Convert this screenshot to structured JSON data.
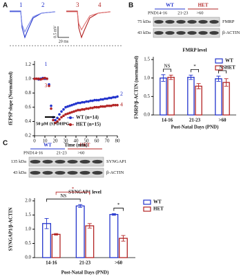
{
  "panel_labels": [
    "A",
    "B",
    "C"
  ],
  "traces": {
    "labels": [
      "1",
      "2",
      "3",
      "4"
    ],
    "scale_y": "0.5 mV",
    "scale_x": "20 ms"
  },
  "blots": [
    {
      "header": [
        "WT",
        "HET"
      ],
      "lanes": [
        "PND14-16",
        "21-23",
        ">60"
      ],
      "rows": [
        {
          "kda": "75 kDa",
          "label": "FMRP"
        },
        {
          "kda": "43 kDa",
          "label": "β-ACTIN"
        }
      ]
    },
    {
      "header": [
        "WT",
        "HET"
      ],
      "lanes": [
        "PND14-16",
        "21-23",
        ">60"
      ],
      "rows": [
        {
          "kda": "135 kDa",
          "label": "SYNGAP1"
        },
        {
          "kda": "43 kDa",
          "label": "β-ACTIN"
        }
      ]
    }
  ],
  "chart_data": [
    {
      "type": "line",
      "ylabel": "fEPSP slope (Normalized)",
      "xlabel": "Time (min)",
      "x": [
        0,
        2,
        4,
        6,
        8,
        10,
        12,
        14,
        16,
        18,
        20,
        22,
        24,
        26,
        28,
        30,
        32,
        34,
        36,
        38,
        40,
        42,
        44,
        46,
        48,
        50,
        52,
        54,
        56,
        58,
        60,
        62,
        64,
        66,
        68,
        70,
        72,
        74,
        76,
        78,
        80
      ],
      "series": [
        {
          "name": "WT (n=14)",
          "color": "#2233cc",
          "values": [
            1.0,
            1.0,
            0.99,
            1.0,
            1.01,
            1.0,
            1.0,
            0.92,
            0.62,
            0.46,
            0.42,
            0.45,
            0.5,
            0.54,
            0.57,
            0.6,
            0.61,
            0.62,
            0.63,
            0.64,
            0.65,
            0.66,
            0.66,
            0.67,
            0.67,
            0.68,
            0.68,
            0.69,
            0.69,
            0.7,
            0.7,
            0.7,
            0.71,
            0.71,
            0.72,
            0.72,
            0.73,
            0.73,
            0.74,
            0.74,
            0.75
          ]
        },
        {
          "name": "HET (n=15)",
          "color": "#b22222",
          "values": [
            1.0,
            1.0,
            1.0,
            0.99,
            1.0,
            1.01,
            1.0,
            0.9,
            0.58,
            0.42,
            0.38,
            0.4,
            0.43,
            0.46,
            0.48,
            0.5,
            0.51,
            0.52,
            0.53,
            0.54,
            0.55,
            0.56,
            0.56,
            0.57,
            0.57,
            0.58,
            0.58,
            0.59,
            0.59,
            0.6,
            0.6,
            0.6,
            0.61,
            0.61,
            0.61,
            0.62,
            0.62,
            0.62,
            0.63,
            0.63,
            0.63
          ]
        }
      ],
      "xlim": [
        0,
        80
      ],
      "xticks": [
        0,
        10,
        20,
        30,
        40,
        50,
        60,
        70,
        80
      ],
      "ylim": [
        0.2,
        1.25
      ],
      "yticks": [
        0.2,
        0.4,
        0.6,
        0.8,
        {
          "value": 1.0,
          "label": "1.0"
        },
        1.2
      ],
      "annotations": [
        "50 μM (S)-DHPG",
        "1",
        "2",
        "3",
        "4"
      ]
    },
    {
      "type": "bar",
      "title": "FMRP level",
      "ylabel": "FMRP/β-ACTIN (normalized)",
      "xlabel": "Post-Natal Days (PND)",
      "categories": [
        "14-16",
        "21-23",
        ">60"
      ],
      "series": [
        {
          "name": "WT",
          "color": "#2233cc",
          "values": [
            1.0,
            1.02,
            0.98
          ],
          "errors": [
            0.09,
            0.06,
            0.07
          ]
        },
        {
          "name": "HET",
          "color": "#b22222",
          "values": [
            1.02,
            0.78,
            0.88
          ],
          "errors": [
            0.06,
            0.07,
            0.1
          ]
        }
      ],
      "ylim": [
        0,
        1.5
      ],
      "yticks": [
        {
          "value": 0,
          "label": "0.0"
        },
        0.5,
        {
          "value": 1,
          "label": "1.0"
        },
        1.5
      ],
      "significance": [
        "NS",
        "*",
        "NS"
      ]
    },
    {
      "type": "bar",
      "title": "SYNGAP1 level",
      "ylabel": "SYNGAP1/β-ACTIN",
      "xlabel": "Post-Natal Days (PND)",
      "categories": [
        "14-16",
        "21-23",
        ">60"
      ],
      "series": [
        {
          "name": "WT",
          "color": "#2233cc",
          "values": [
            1.2,
            1.82,
            1.52
          ],
          "errors": [
            0.18,
            0.05,
            0.03
          ]
        },
        {
          "name": "HET",
          "color": "#b22222",
          "values": [
            0.82,
            1.12,
            0.68
          ],
          "errors": [
            0.03,
            0.08,
            0.1
          ]
        }
      ],
      "ylim": [
        0,
        2.0
      ],
      "yticks": [
        {
          "value": 0,
          "label": "0.0"
        },
        0.5,
        {
          "value": 1,
          "label": "1.0"
        },
        1.5,
        {
          "value": 2,
          "label": "2.0"
        }
      ],
      "significance": [
        "NS",
        "*",
        "*"
      ]
    }
  ]
}
